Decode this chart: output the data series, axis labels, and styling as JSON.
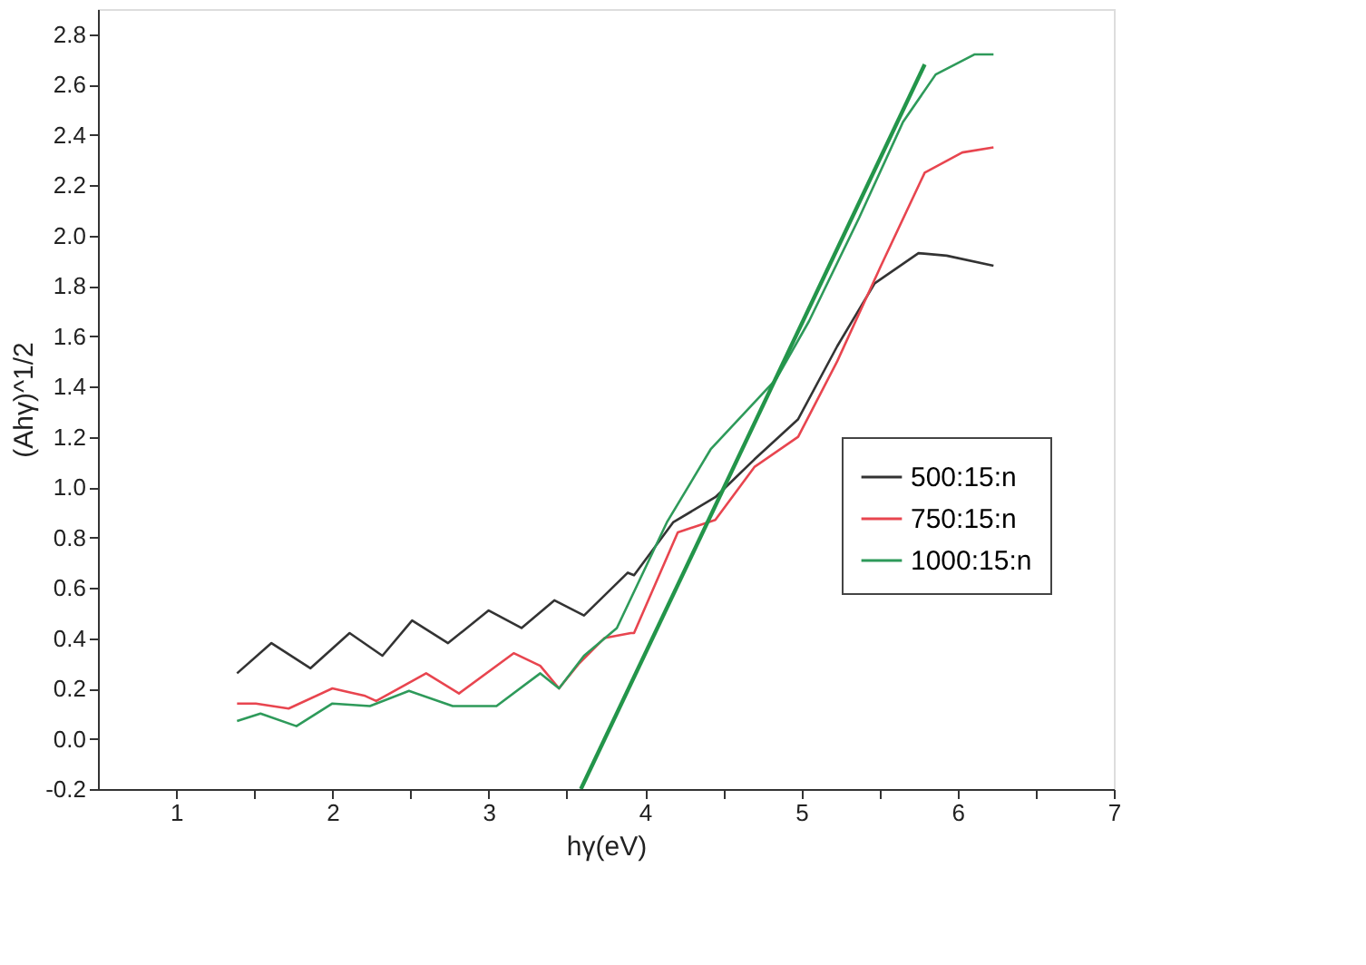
{
  "chart_data": {
    "type": "line",
    "xlabel": "hγ(eV)",
    "ylabel": "(Ahγ)^1/2",
    "xlim": [
      0.5,
      7
    ],
    "ylim": [
      -0.2,
      2.9
    ],
    "xticks": [
      1,
      {
        "value": 1.5,
        "label": null
      },
      2,
      {
        "value": 2.5,
        "label": null
      },
      3,
      {
        "value": 3.5,
        "label": null
      },
      4,
      {
        "value": 4.5,
        "label": null
      },
      5,
      {
        "value": 5.5,
        "label": null
      },
      6,
      {
        "value": 6.5,
        "label": null
      },
      7
    ],
    "yticks": [
      {
        "value": -0.2,
        "label": "-0.2"
      },
      {
        "value": 0,
        "label": "0.0"
      },
      0.2,
      0.4,
      0.6,
      0.8,
      {
        "value": 1,
        "label": "1.0"
      },
      1.2,
      1.4,
      1.6,
      1.8,
      {
        "value": 2,
        "label": "2.0"
      },
      2.2,
      2.4,
      2.6,
      2.8
    ],
    "grid": false,
    "legend": "right",
    "marker": "none",
    "line_style": "solid",
    "series": [
      {
        "name": "500:15:n",
        "color": "#333333",
        "x": [
          1.39,
          1.61,
          1.86,
          2.11,
          2.32,
          2.51,
          2.74,
          3.0,
          3.21,
          3.42,
          3.61,
          3.89,
          3.93,
          4.18,
          4.45,
          4.7,
          4.98,
          5.23,
          5.47,
          5.75,
          5.93,
          6.23
        ],
        "values": [
          0.26,
          0.38,
          0.28,
          0.42,
          0.33,
          0.47,
          0.38,
          0.51,
          0.44,
          0.55,
          0.49,
          0.66,
          0.65,
          0.86,
          0.96,
          1.11,
          1.27,
          1.56,
          1.81,
          1.93,
          1.92,
          1.88
        ]
      },
      {
        "name": "750:15:n",
        "color": "#e8454f",
        "x": [
          1.39,
          1.51,
          1.72,
          2.0,
          2.21,
          2.28,
          2.6,
          2.81,
          3.16,
          3.33,
          3.45,
          3.58,
          3.74,
          3.91,
          3.93,
          4.21,
          4.45,
          4.7,
          4.98,
          5.23,
          5.51,
          5.79,
          6.03,
          6.23
        ],
        "values": [
          0.14,
          0.14,
          0.12,
          0.2,
          0.17,
          0.15,
          0.26,
          0.18,
          0.34,
          0.29,
          0.2,
          0.3,
          0.4,
          0.42,
          0.42,
          0.82,
          0.87,
          1.08,
          1.2,
          1.5,
          1.88,
          2.25,
          2.33,
          2.35
        ]
      },
      {
        "name": "1000:15:n",
        "color": "#2e9a5a",
        "x": [
          1.39,
          1.54,
          1.77,
          2.0,
          2.24,
          2.49,
          2.77,
          3.05,
          3.33,
          3.45,
          3.61,
          3.82,
          4.14,
          4.42,
          4.63,
          4.84,
          5.05,
          5.37,
          5.65,
          5.86,
          6.11,
          6.23
        ],
        "values": [
          0.07,
          0.1,
          0.05,
          0.14,
          0.13,
          0.19,
          0.13,
          0.13,
          0.26,
          0.2,
          0.33,
          0.44,
          0.86,
          1.15,
          1.29,
          1.43,
          1.66,
          2.07,
          2.45,
          2.64,
          2.72,
          2.72
        ]
      },
      {
        "type": "line",
        "color": "#23954a",
        "x": [
          3.59,
          5.79
        ],
        "values": [
          -0.2,
          2.68
        ]
      }
    ]
  }
}
